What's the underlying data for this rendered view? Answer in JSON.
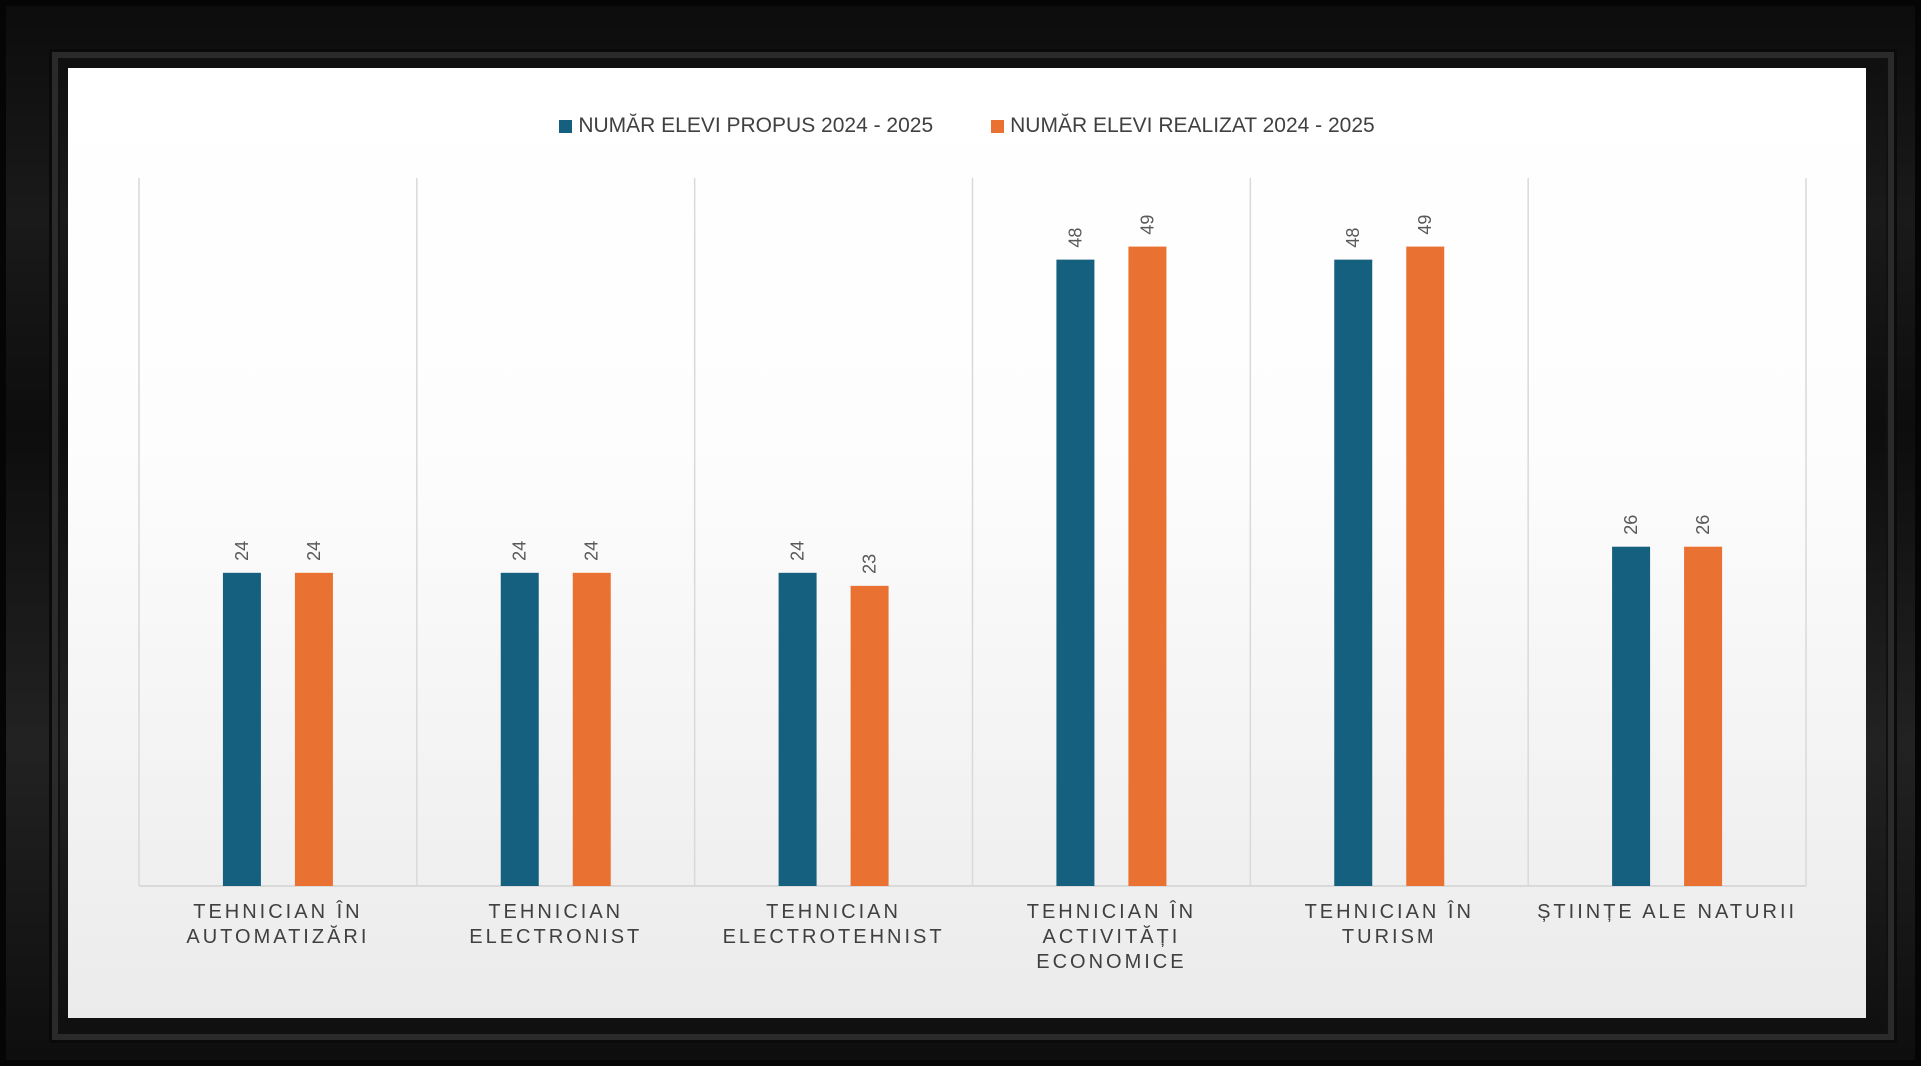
{
  "chart_data": {
    "type": "bar",
    "categories": [
      "TEHNICIAN ÎN AUTOMATIZĂRI",
      "TEHNICIAN ELECTRONIST",
      "TEHNICIAN ELECTROTEHNIST",
      "TEHNICIAN ÎN ACTIVITĂȚI ECONOMICE",
      "TEHNICIAN ÎN TURISM",
      "ȘTIINȚE ALE NATURII"
    ],
    "series": [
      {
        "name": "NUMĂR ELEVI PROPUS 2024 - 2025",
        "color": "#16607f",
        "values": [
          24,
          24,
          24,
          48,
          48,
          26
        ]
      },
      {
        "name": "NUMĂR ELEVI REALIZAT 2024 - 2025",
        "color": "#e97132",
        "values": [
          24,
          24,
          23,
          49,
          49,
          26
        ]
      }
    ],
    "title": "",
    "xlabel": "",
    "ylabel": "",
    "ylim": [
      0,
      51
    ],
    "grid": "vertical category separators",
    "legend": "top-center",
    "data_labels": "rotated above bars"
  }
}
